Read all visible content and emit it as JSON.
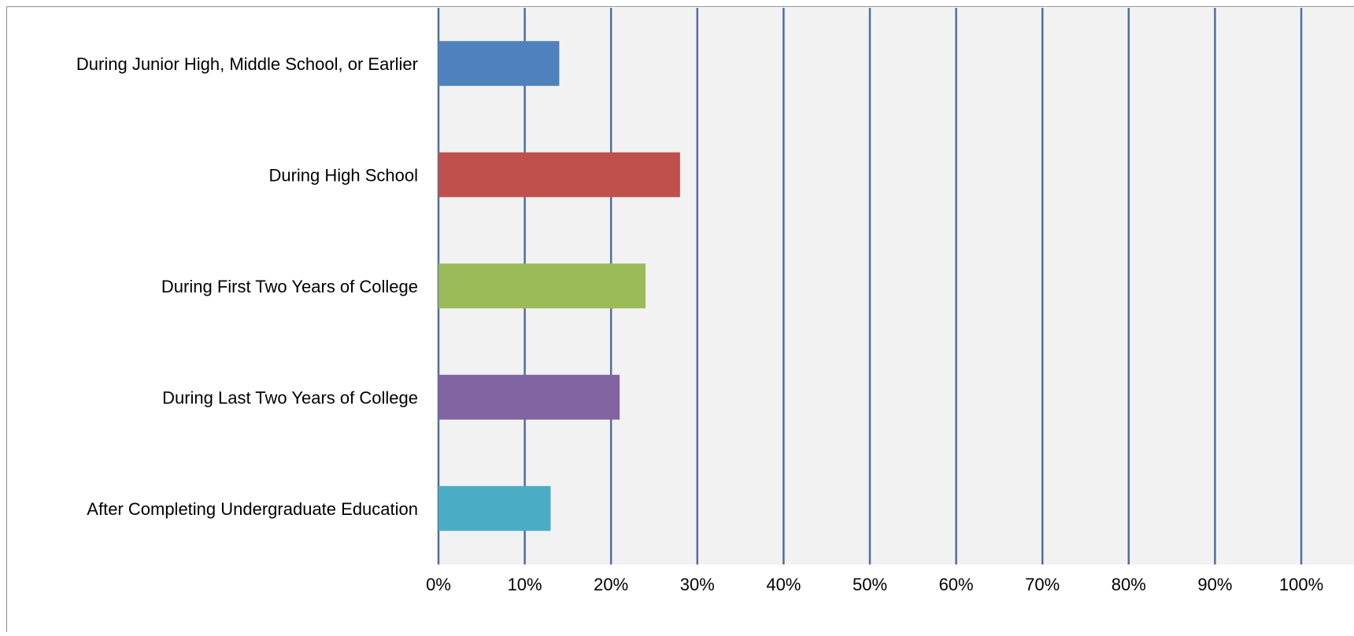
{
  "chart_data": {
    "type": "bar",
    "orientation": "horizontal",
    "title": "",
    "xlabel": "",
    "ylabel": "",
    "categories": [
      "During Junior High, Middle School, or Earlier",
      "During High School",
      "During First Two Years of College",
      "During Last Two Years of College",
      "After Completing Undergraduate Education"
    ],
    "values": [
      14,
      28,
      24,
      21,
      13
    ],
    "colors": [
      "#4F81BD",
      "#C0504D",
      "#9BBB59",
      "#8064A2",
      "#4BACC6"
    ],
    "xlim": [
      0,
      100
    ],
    "xticks": [
      "0%",
      "10%",
      "20%",
      "30%",
      "40%",
      "50%",
      "60%",
      "70%",
      "80%",
      "90%",
      "100%"
    ],
    "grid": "vertical",
    "legend": "none",
    "plot_background": "#F2F2F2",
    "gridline_color": "#4F6E9F"
  }
}
